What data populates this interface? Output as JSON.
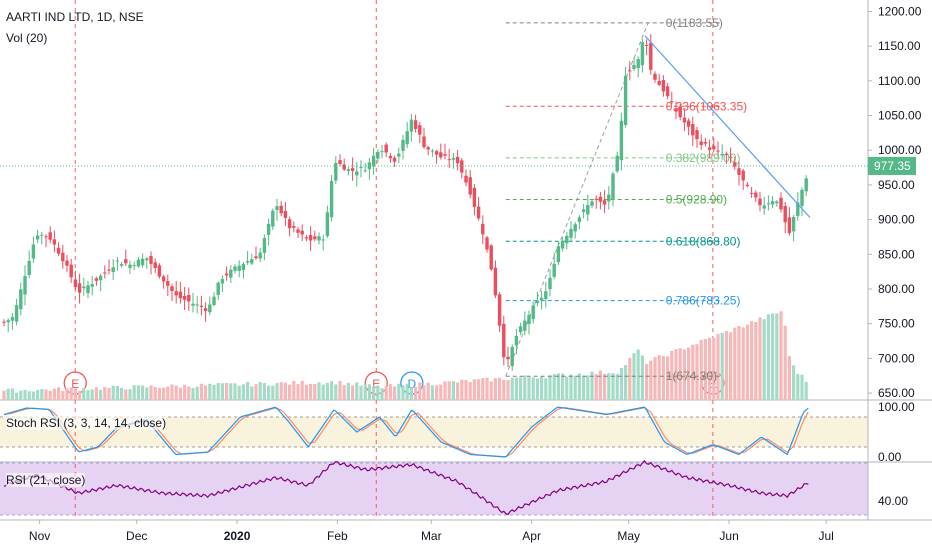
{
  "header": {
    "title": "AARTI IND LTD, 1D, NSE",
    "volume_label": "Vol (20)",
    "stoch_label": "Stoch RSI (3, 3, 14, 14, close)",
    "rsi_label": "RSI (21, close)"
  },
  "colors": {
    "up": "#26a69a",
    "up_candle": "#53b987",
    "down": "#ef5350",
    "down_candle": "#eb4d5c",
    "stoch_k": "#2196f3",
    "stoch_d": "#ff8a65",
    "rsi_line": "#800080",
    "rsi_band": "#e6d3f3",
    "stoch_band": "#f9f2dc",
    "price_tag": "#53b987",
    "trend_line": "#5b9cf6",
    "earnings": "#ef5350",
    "dividend": "#2196f3"
  },
  "chart_data": {
    "type": "candlestick",
    "price_axis": {
      "range": [
        640,
        1205
      ],
      "ticks": [
        "1200.00",
        "1150.00",
        "1100.00",
        "1050.00",
        "1000.00",
        "950.00",
        "900.00",
        "850.00",
        "800.00",
        "750.00",
        "700.00",
        "650.00"
      ]
    },
    "last_price": "977.35",
    "time_axis": [
      "Nov",
      "Dec",
      "2020",
      "Feb",
      "Mar",
      "Apr",
      "May",
      "Jun",
      "Jul"
    ],
    "price_path": [
      {
        "date": "2019-10-21",
        "close": 752
      },
      {
        "date": "2019-10-24",
        "close": 760
      },
      {
        "date": "2019-10-28",
        "close": 830
      },
      {
        "date": "2019-10-31",
        "close": 880
      },
      {
        "date": "2019-11-04",
        "close": 875
      },
      {
        "date": "2019-11-08",
        "close": 845
      },
      {
        "date": "2019-11-13",
        "close": 795
      },
      {
        "date": "2019-11-19",
        "close": 815
      },
      {
        "date": "2019-11-25",
        "close": 840
      },
      {
        "date": "2019-11-29",
        "close": 835
      },
      {
        "date": "2019-12-04",
        "close": 845
      },
      {
        "date": "2019-12-09",
        "close": 815
      },
      {
        "date": "2019-12-13",
        "close": 790
      },
      {
        "date": "2019-12-18",
        "close": 780
      },
      {
        "date": "2019-12-23",
        "close": 770
      },
      {
        "date": "2019-12-27",
        "close": 815
      },
      {
        "date": "2020-01-02",
        "close": 835
      },
      {
        "date": "2020-01-08",
        "close": 850
      },
      {
        "date": "2020-01-13",
        "close": 925
      },
      {
        "date": "2020-01-17",
        "close": 890
      },
      {
        "date": "2020-01-23",
        "close": 870
      },
      {
        "date": "2020-01-28",
        "close": 875
      },
      {
        "date": "2020-01-31",
        "close": 985
      },
      {
        "date": "2020-02-05",
        "close": 970
      },
      {
        "date": "2020-02-10",
        "close": 975
      },
      {
        "date": "2020-02-14",
        "close": 1005
      },
      {
        "date": "2020-02-19",
        "close": 985
      },
      {
        "date": "2020-02-24",
        "close": 1045
      },
      {
        "date": "2020-02-28",
        "close": 1005
      },
      {
        "date": "2020-03-04",
        "close": 990
      },
      {
        "date": "2020-03-09",
        "close": 985
      },
      {
        "date": "2020-03-13",
        "close": 940
      },
      {
        "date": "2020-03-17",
        "close": 880
      },
      {
        "date": "2020-03-20",
        "close": 820
      },
      {
        "date": "2020-03-24",
        "close": 685
      },
      {
        "date": "2020-03-27",
        "close": 730
      },
      {
        "date": "2020-04-01",
        "close": 770
      },
      {
        "date": "2020-04-06",
        "close": 800
      },
      {
        "date": "2020-04-09",
        "close": 860
      },
      {
        "date": "2020-04-15",
        "close": 900
      },
      {
        "date": "2020-04-20",
        "close": 930
      },
      {
        "date": "2020-04-24",
        "close": 920
      },
      {
        "date": "2020-04-28",
        "close": 1000
      },
      {
        "date": "2020-04-30",
        "close": 1110
      },
      {
        "date": "2020-05-04",
        "close": 1130
      },
      {
        "date": "2020-05-06",
        "close": 1170
      },
      {
        "date": "2020-05-08",
        "close": 1110
      },
      {
        "date": "2020-05-12",
        "close": 1085
      },
      {
        "date": "2020-05-15",
        "close": 1060
      },
      {
        "date": "2020-05-19",
        "close": 1035
      },
      {
        "date": "2020-05-22",
        "close": 1015
      },
      {
        "date": "2020-05-27",
        "close": 1000
      },
      {
        "date": "2020-06-01",
        "close": 990
      },
      {
        "date": "2020-06-04",
        "close": 965
      },
      {
        "date": "2020-06-08",
        "close": 935
      },
      {
        "date": "2020-06-11",
        "close": 920
      },
      {
        "date": "2020-06-15",
        "close": 930
      },
      {
        "date": "2020-06-18",
        "close": 910
      },
      {
        "date": "2020-06-19",
        "close": 870
      },
      {
        "date": "2020-06-22",
        "close": 920
      },
      {
        "date": "2020-06-24",
        "close": 950
      },
      {
        "date": "2020-06-26",
        "close": 977.35
      }
    ],
    "volume_profile": [
      {
        "date": "2019-10-21",
        "level": 0.08
      },
      {
        "date": "2020-01-31",
        "level": 0.18
      },
      {
        "date": "2020-02-14",
        "level": 0.12
      },
      {
        "date": "2020-03-24",
        "level": 0.22
      },
      {
        "date": "2020-04-28",
        "level": 0.3
      },
      {
        "date": "2020-05-04",
        "level": 0.55
      },
      {
        "date": "2020-05-06",
        "level": 0.4
      },
      {
        "date": "2020-06-18",
        "level": 1.0
      },
      {
        "date": "2020-06-19",
        "level": 0.5
      },
      {
        "date": "2020-06-22",
        "level": 0.3
      },
      {
        "date": "2020-06-26",
        "level": 0.15
      }
    ],
    "fibonacci": {
      "levels": [
        {
          "ratio": "0",
          "price": 1183.55,
          "label": "0(1183.55)",
          "color": "#808080"
        },
        {
          "ratio": "0.236",
          "price": 1063.35,
          "label": "0.236(1063.35)",
          "color": "#ef5350"
        },
        {
          "ratio": "0.382",
          "price": 989.0,
          "label": "0.382(989.00)",
          "color": "#81c784"
        },
        {
          "ratio": "0.5",
          "price": 928.9,
          "label": "0.5(928.90)",
          "color": "#4caf50"
        },
        {
          "ratio": "0.618",
          "price": 868.8,
          "label": "0.618(868.80)",
          "color": "#009688"
        },
        {
          "ratio": "0.786",
          "price": 783.25,
          "label": "0.786(783.25)",
          "color": "#2196f3"
        },
        {
          "ratio": "1",
          "price": 674.3,
          "label": "1(674.30)",
          "color": "#808080"
        }
      ],
      "from_date": "2020-03-24",
      "to_date": "2020-05-30"
    },
    "trendline": {
      "from": {
        "date": "2020-05-06",
        "price": 1165
      },
      "to": {
        "date": "2020-06-26",
        "price": 903
      }
    },
    "events": [
      {
        "type": "E",
        "date": "2019-11-12"
      },
      {
        "type": "E",
        "date": "2020-02-13"
      },
      {
        "type": "D",
        "date": "2020-02-24"
      },
      {
        "type": "E",
        "date": "2020-05-27"
      }
    ],
    "stoch_rsi": {
      "axis_ticks": [
        "100.00",
        "0.00"
      ],
      "k": [
        {
          "date": "2019-10-21",
          "value": 85
        },
        {
          "date": "2019-10-28",
          "value": 98
        },
        {
          "date": "2019-11-04",
          "value": 95
        },
        {
          "date": "2019-11-13",
          "value": 10
        },
        {
          "date": "2019-11-19",
          "value": 20
        },
        {
          "date": "2019-11-25",
          "value": 60
        },
        {
          "date": "2019-12-04",
          "value": 75
        },
        {
          "date": "2019-12-13",
          "value": 5
        },
        {
          "date": "2019-12-23",
          "value": 10
        },
        {
          "date": "2020-01-02",
          "value": 80
        },
        {
          "date": "2020-01-13",
          "value": 100
        },
        {
          "date": "2020-01-17",
          "value": 70
        },
        {
          "date": "2020-01-23",
          "value": 20
        },
        {
          "date": "2020-01-31",
          "value": 95
        },
        {
          "date": "2020-02-07",
          "value": 50
        },
        {
          "date": "2020-02-14",
          "value": 80
        },
        {
          "date": "2020-02-19",
          "value": 40
        },
        {
          "date": "2020-02-24",
          "value": 95
        },
        {
          "date": "2020-03-04",
          "value": 30
        },
        {
          "date": "2020-03-13",
          "value": 5
        },
        {
          "date": "2020-03-24",
          "value": 0
        },
        {
          "date": "2020-04-01",
          "value": 60
        },
        {
          "date": "2020-04-09",
          "value": 100
        },
        {
          "date": "2020-04-24",
          "value": 85
        },
        {
          "date": "2020-05-06",
          "value": 100
        },
        {
          "date": "2020-05-12",
          "value": 30
        },
        {
          "date": "2020-05-19",
          "value": 5
        },
        {
          "date": "2020-05-27",
          "value": 25
        },
        {
          "date": "2020-06-04",
          "value": 5
        },
        {
          "date": "2020-06-11",
          "value": 40
        },
        {
          "date": "2020-06-19",
          "value": 5
        },
        {
          "date": "2020-06-24",
          "value": 90
        },
        {
          "date": "2020-06-26",
          "value": 100
        }
      ]
    },
    "rsi": {
      "axis_ticks": [
        "40.00"
      ],
      "band": [
        30,
        70
      ],
      "values": [
        {
          "date": "2019-10-21",
          "value": 52
        },
        {
          "date": "2019-10-31",
          "value": 60
        },
        {
          "date": "2019-11-13",
          "value": 46
        },
        {
          "date": "2019-11-25",
          "value": 52
        },
        {
          "date": "2019-12-09",
          "value": 46
        },
        {
          "date": "2019-12-23",
          "value": 44
        },
        {
          "date": "2020-01-13",
          "value": 58
        },
        {
          "date": "2020-01-23",
          "value": 52
        },
        {
          "date": "2020-01-31",
          "value": 70
        },
        {
          "date": "2020-02-10",
          "value": 64
        },
        {
          "date": "2020-02-24",
          "value": 68
        },
        {
          "date": "2020-03-09",
          "value": 55
        },
        {
          "date": "2020-03-17",
          "value": 42
        },
        {
          "date": "2020-03-24",
          "value": 30
        },
        {
          "date": "2020-04-09",
          "value": 48
        },
        {
          "date": "2020-04-24",
          "value": 55
        },
        {
          "date": "2020-05-06",
          "value": 70
        },
        {
          "date": "2020-05-19",
          "value": 58
        },
        {
          "date": "2020-06-01",
          "value": 52
        },
        {
          "date": "2020-06-11",
          "value": 46
        },
        {
          "date": "2020-06-19",
          "value": 44
        },
        {
          "date": "2020-06-26",
          "value": 55
        }
      ]
    }
  }
}
